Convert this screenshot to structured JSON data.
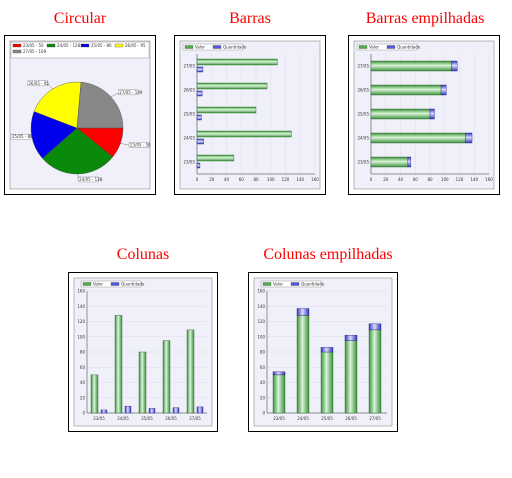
{
  "titles": {
    "pie": "Circular",
    "hbar": "Barras",
    "hstack": "Barras empilhadas",
    "vbar": "Colunas",
    "vstack": "Colunas empilhadas"
  },
  "colors": {
    "title": "#ff0000",
    "valor": "#4caf50",
    "quantidade": "#5555dd",
    "pie": [
      "#ff0000",
      "#0a8a0a",
      "#0000ee",
      "#ffff00",
      "#888888"
    ]
  },
  "chart_data": [
    {
      "type": "pie",
      "title": "Circular",
      "labels": [
        "23/05 - 50",
        "24/05 - 128",
        "25/05 - 80",
        "26/05 - 95",
        "27/05 - 109"
      ],
      "values": [
        50,
        128,
        80,
        95,
        109
      ],
      "legend": "top"
    },
    {
      "type": "bar",
      "orientation": "horizontal",
      "title": "Barras",
      "categories": [
        "27/05",
        "26/05",
        "25/05",
        "24/05",
        "23/05"
      ],
      "series": [
        {
          "name": "Valor",
          "values": [
            109,
            95,
            80,
            128,
            50
          ]
        },
        {
          "name": "Quantidade",
          "values": [
            8,
            7,
            6,
            9,
            4
          ]
        }
      ],
      "xlim": [
        0,
        160
      ],
      "xticks": [
        "0",
        "20",
        "40",
        "60",
        "80",
        "100",
        "120",
        "140",
        "160"
      ],
      "legend": "top-left"
    },
    {
      "type": "bar",
      "orientation": "horizontal",
      "stacked": true,
      "title": "Barras empilhadas",
      "categories": [
        "27/05",
        "26/05",
        "25/05",
        "24/05",
        "23/05"
      ],
      "series": [
        {
          "name": "Valor",
          "values": [
            109,
            95,
            80,
            128,
            50
          ]
        },
        {
          "name": "Quantidade",
          "values": [
            8,
            7,
            6,
            9,
            4
          ]
        }
      ],
      "xlim": [
        0,
        160
      ],
      "xticks": [
        "0",
        "20",
        "40",
        "60",
        "80",
        "100",
        "120",
        "140",
        "160"
      ],
      "legend": "top-left"
    },
    {
      "type": "bar",
      "orientation": "vertical",
      "title": "Colunas",
      "categories": [
        "23/05",
        "24/05",
        "25/05",
        "26/05",
        "27/05"
      ],
      "series": [
        {
          "name": "Valor",
          "values": [
            50,
            128,
            80,
            95,
            109
          ]
        },
        {
          "name": "Quantidade",
          "values": [
            4,
            9,
            6,
            7,
            8
          ]
        }
      ],
      "ylim": [
        0,
        160
      ],
      "yticks": [
        "0",
        "20",
        "40",
        "60",
        "80",
        "100",
        "120",
        "140",
        "160"
      ],
      "legend": "top-left"
    },
    {
      "type": "bar",
      "orientation": "vertical",
      "stacked": true,
      "title": "Colunas empilhadas",
      "categories": [
        "23/05",
        "24/05",
        "25/05",
        "26/05",
        "27/05"
      ],
      "series": [
        {
          "name": "Valor",
          "values": [
            50,
            128,
            80,
            95,
            109
          ]
        },
        {
          "name": "Quantidade",
          "values": [
            4,
            9,
            6,
            7,
            8
          ]
        }
      ],
      "ylim": [
        0,
        160
      ],
      "yticks": [
        "0",
        "20",
        "40",
        "60",
        "80",
        "100",
        "120",
        "140",
        "160"
      ],
      "legend": "top-left"
    }
  ]
}
